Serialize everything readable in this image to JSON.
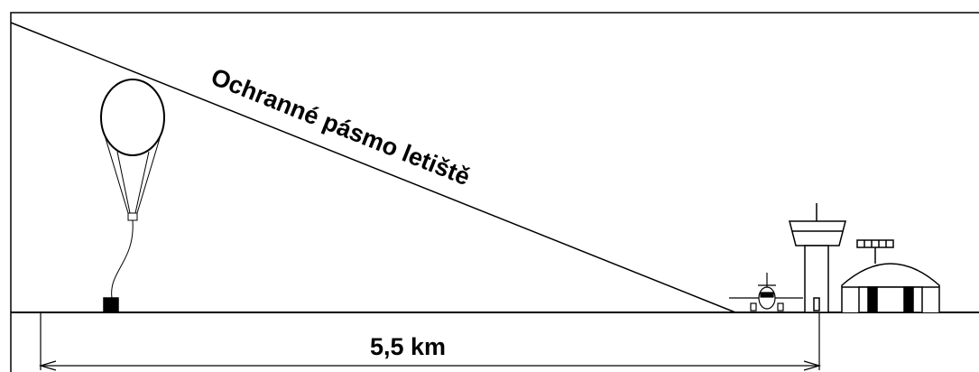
{
  "diagram": {
    "zone_label": "Ochranné pásmo letiště",
    "distance_label": "5,5 km"
  }
}
